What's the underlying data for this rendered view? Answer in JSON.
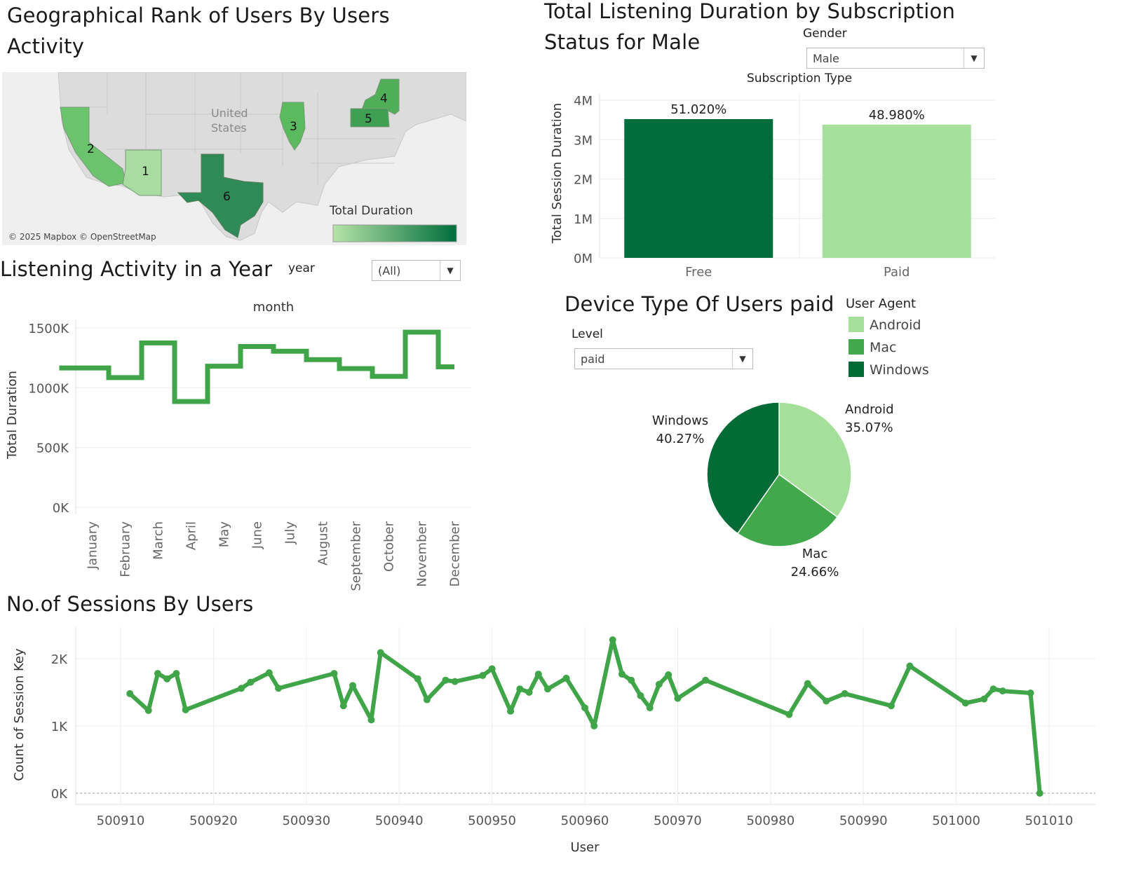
{
  "map_panel": {
    "title": "Geographical Rank of Users By Users Activity",
    "country_label": "United States",
    "legend_title": "Total Duration",
    "attribution": "© 2025 Mapbox © OpenStreetMap",
    "ranks": [
      {
        "state": "Arizona",
        "rank": "1",
        "color": "#a8dca0"
      },
      {
        "state": "California",
        "rank": "2",
        "color": "#6cc36e"
      },
      {
        "state": "Illinois",
        "rank": "3",
        "color": "#5bb95e"
      },
      {
        "state": "New York",
        "rank": "4",
        "color": "#4fae57"
      },
      {
        "state": "Pennsylvania",
        "rank": "5",
        "color": "#3f9f52"
      },
      {
        "state": "Texas",
        "rank": "6",
        "color": "#2e8b57"
      }
    ],
    "gradient": {
      "from": "#b6e3a8",
      "to": "#006d3b"
    }
  },
  "subscription_panel": {
    "title": "Total Listening Duration by Subscription Status for Male",
    "filter_label": "Gender",
    "filter_value": "Male",
    "column_header": "Subscription Type",
    "chart_data": {
      "type": "bar",
      "categories": [
        "Free",
        "Paid"
      ],
      "values": [
        3.52,
        3.38
      ],
      "data_labels": [
        "51.020%",
        "48.980%"
      ],
      "colors": [
        "#006d3b",
        "#a5e09a"
      ],
      "ylabel": "Total Session Duration",
      "ylim": [
        0,
        4
      ],
      "yticks": [
        "0M",
        "1M",
        "2M",
        "3M",
        "4M"
      ]
    }
  },
  "activity_panel": {
    "title": "Listening Activity in a Year",
    "filter_label": "year",
    "filter_value": "(All)",
    "column_header": "month",
    "chart_data": {
      "type": "line",
      "step": true,
      "categories": [
        "January",
        "February",
        "March",
        "April",
        "May",
        "June",
        "July",
        "August",
        "September",
        "October",
        "November",
        "December"
      ],
      "values": [
        1165,
        1085,
        1375,
        885,
        1180,
        1345,
        1305,
        1235,
        1160,
        1095,
        1465,
        1175
      ],
      "ylabel": "Total Duration",
      "ylim": [
        0,
        1500
      ],
      "yticks": [
        "0K",
        "500K",
        "1000K",
        "1500K"
      ],
      "color": "#3fa548"
    }
  },
  "device_panel": {
    "title": "Device Type Of Users paid",
    "filter_label": "Level",
    "filter_value": "paid",
    "legend_title": "User Agent",
    "chart_data": {
      "type": "pie",
      "categories": [
        "Android",
        "Mac",
        "Windows"
      ],
      "values": [
        35.07,
        24.66,
        40.27
      ],
      "labels": [
        "35.07%",
        "24.66%",
        "40.27%"
      ],
      "colors": [
        "#a5e09a",
        "#41a94b",
        "#036b36"
      ]
    }
  },
  "sessions_panel": {
    "title": "No.of Sessions By Users",
    "chart_data": {
      "type": "line",
      "x": [
        500911,
        500913,
        500914,
        500915,
        500916,
        500917,
        500923,
        500924,
        500926,
        500927,
        500933,
        500934,
        500935,
        500937,
        500938,
        500942,
        500943,
        500945,
        500946,
        500949,
        500950,
        500952,
        500953,
        500954,
        500955,
        500956,
        500958,
        500960,
        500961,
        500963,
        500964,
        500965,
        500966,
        500967,
        500968,
        500969,
        500970,
        500973,
        500982,
        500984,
        500986,
        500988,
        500993,
        500995,
        501001,
        501003,
        501004,
        501005,
        501008,
        501009
      ],
      "y": [
        1480,
        1230,
        1780,
        1700,
        1780,
        1240,
        1560,
        1650,
        1790,
        1560,
        1780,
        1300,
        1600,
        1090,
        2090,
        1700,
        1390,
        1680,
        1660,
        1750,
        1850,
        1220,
        1550,
        1500,
        1770,
        1550,
        1710,
        1270,
        1000,
        2280,
        1770,
        1680,
        1450,
        1270,
        1620,
        1760,
        1410,
        1680,
        1170,
        1630,
        1370,
        1480,
        1300,
        1890,
        1340,
        1400,
        1550,
        1520,
        1490,
        0
      ],
      "xlabel": "User",
      "ylabel": "Count of Session Key",
      "xlim": [
        500905,
        501015
      ],
      "xticks": [
        "500910",
        "500920",
        "500930",
        "500940",
        "500950",
        "500960",
        "500970",
        "500980",
        "500990",
        "501000",
        "501010"
      ],
      "ylim": [
        0,
        2300
      ],
      "yticks": [
        "0K",
        "1K",
        "2K"
      ],
      "color": "#3fa548"
    }
  }
}
